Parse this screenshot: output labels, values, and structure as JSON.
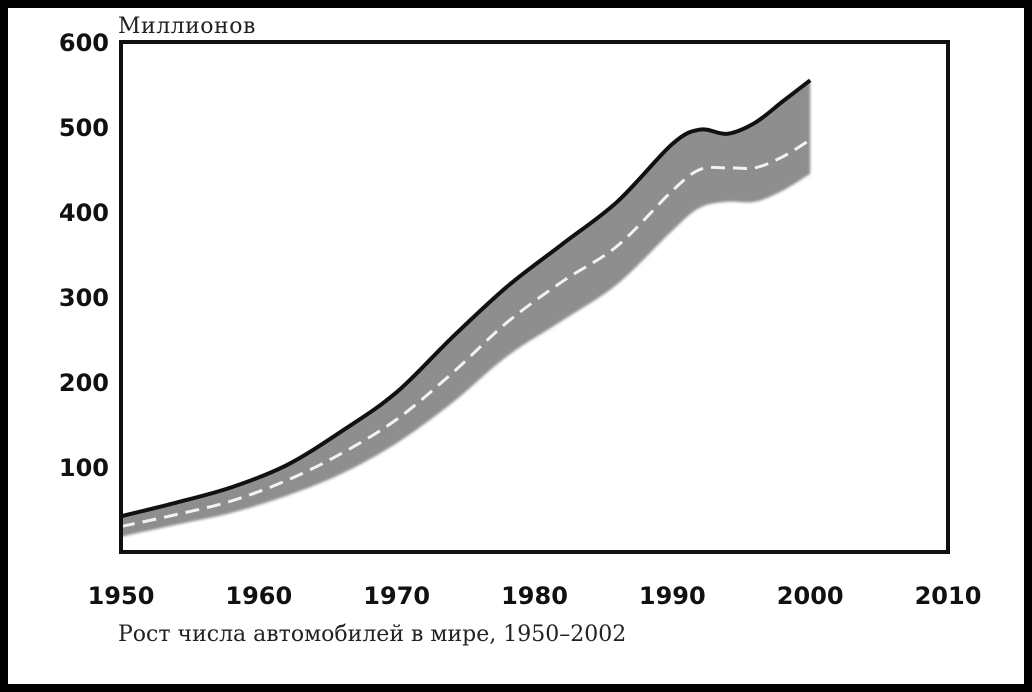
{
  "chart_data": {
    "type": "area",
    "title": "Рост числа автомобилей в мире, 1950–2002",
    "ylabel": "Миллионов",
    "xlabel": "",
    "xlim": [
      1950,
      2010
    ],
    "ylim": [
      0,
      600
    ],
    "x_ticks": [
      "1950",
      "1960",
      "1970",
      "1980",
      "1990",
      "2000",
      "2010"
    ],
    "y_ticks": [
      "100",
      "200",
      "300",
      "400",
      "500",
      "600"
    ],
    "grid": false,
    "legend": "none",
    "colors": {
      "band": "#8e8e8e",
      "upper_line": "#111111",
      "center_dash": "#f2f2f2",
      "frame": "#111111"
    },
    "series": [
      {
        "x": [
          1950,
          1954,
          1958,
          1962,
          1966,
          1970,
          1974,
          1978,
          1982,
          1986,
          1990,
          1992,
          1994,
          1996,
          1998,
          2000
        ],
        "upper": [
          42,
          58,
          76,
          102,
          142,
          188,
          252,
          312,
          362,
          412,
          480,
          497,
          492,
          505,
          530,
          555
        ],
        "center": [
          30,
          44,
          60,
          84,
          116,
          156,
          210,
          270,
          318,
          360,
          425,
          450,
          452,
          452,
          465,
          485
        ],
        "lower": [
          18,
          32,
          46,
          66,
          92,
          128,
          175,
          230,
          272,
          315,
          378,
          405,
          412,
          412,
          425,
          445
        ]
      }
    ]
  }
}
